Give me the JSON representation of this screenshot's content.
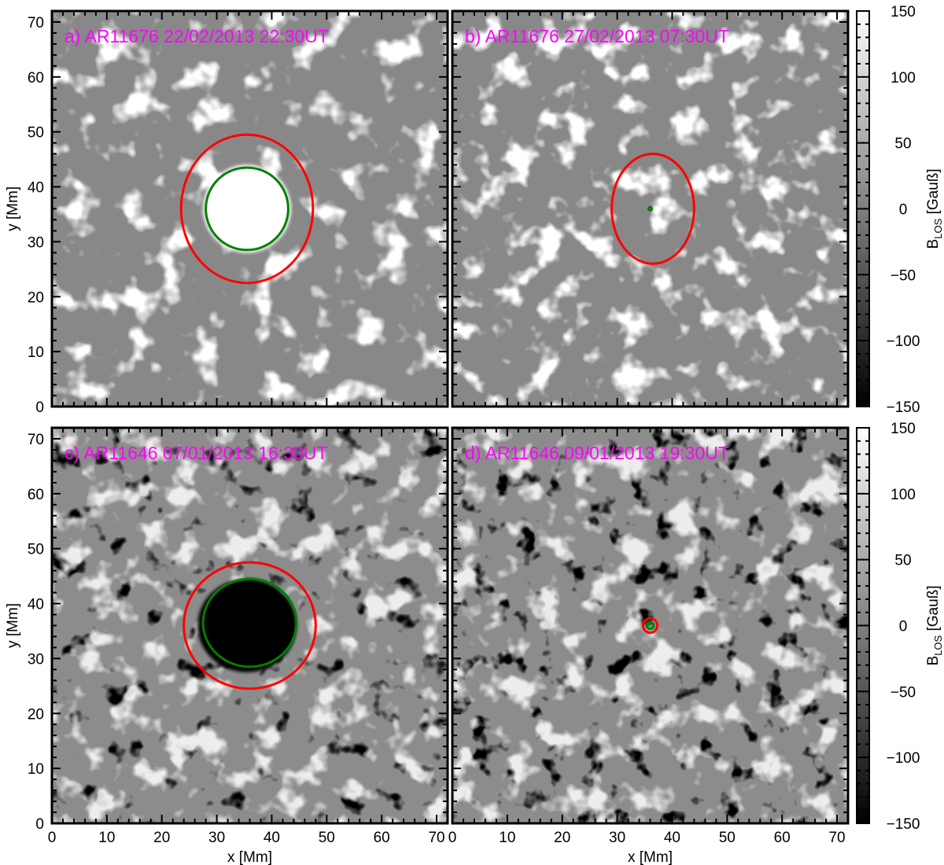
{
  "chart_data": {
    "type": "heatmap",
    "layout": "2x2 panels",
    "xlabel": "x [Mm]",
    "ylabel": "y [Mm]",
    "xlim": [
      0,
      72
    ],
    "ylim": [
      0,
      72
    ],
    "x_ticks": [
      0,
      10,
      20,
      30,
      40,
      50,
      60,
      70
    ],
    "y_ticks": [
      0,
      10,
      20,
      30,
      40,
      50,
      60,
      70
    ],
    "colorbar": {
      "label_main": "B",
      "label_sub": "LOS",
      "label_unit": " [Gauß]",
      "range": [
        -150,
        150
      ],
      "ticks": [
        "150",
        "100",
        "50",
        "0",
        "−50",
        "−100",
        "−150"
      ],
      "tick_values": [
        150,
        100,
        50,
        0,
        -50,
        -100,
        -150
      ],
      "colormap": "grayscale"
    },
    "label_color": "#ff00ff",
    "contour_colors": {
      "outer": "#ff0000",
      "inner": "#008000"
    },
    "panels": [
      {
        "id": "a",
        "label": "a) AR11676  22/02/2013 22:30UT",
        "polarity": "positive",
        "spot_center": [
          35.5,
          36
        ],
        "outer_contour": {
          "center": [
            35.5,
            36
          ],
          "radius_x": 12,
          "radius_y": 13.5
        },
        "inner_contour": {
          "center": [
            35.5,
            36
          ],
          "radius_x": 7.5,
          "radius_y": 7.5
        }
      },
      {
        "id": "b",
        "label": "b) AR11676  27/02/2013 07:30UT",
        "polarity": "positive",
        "spot_center": [
          36,
          36
        ],
        "outer_contour": {
          "center": [
            36.5,
            36
          ],
          "radius_x": 7.5,
          "radius_y": 10
        },
        "inner_contour": {
          "center": [
            36,
            36
          ],
          "radius_x": 0.3,
          "radius_y": 0.3
        }
      },
      {
        "id": "c",
        "label": "c) AR11646  07/01/2013 16:30UT",
        "polarity": "negative",
        "spot_center": [
          35.5,
          36
        ],
        "outer_contour": {
          "center": [
            36,
            36
          ],
          "radius_x": 12,
          "radius_y": 11.5
        },
        "inner_contour": {
          "center": [
            36,
            36.5
          ],
          "radius_x": 8.5,
          "radius_y": 8
        }
      },
      {
        "id": "d",
        "label": "d) AR11646  09/01/2013 19:30UT",
        "polarity": "negative",
        "spot_center": [
          36,
          36
        ],
        "outer_contour": {
          "center": [
            36,
            36
          ],
          "radius_x": 1.3,
          "radius_y": 1.3
        },
        "inner_contour": {
          "center": [
            36,
            36
          ],
          "radius_x": 0.6,
          "radius_y": 0.6
        }
      }
    ]
  }
}
